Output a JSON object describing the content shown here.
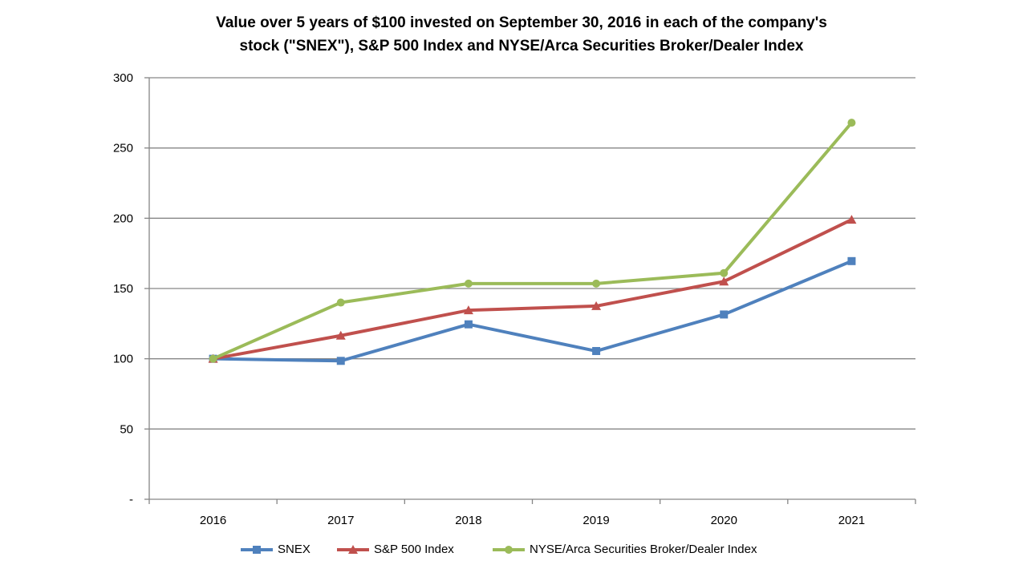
{
  "chart_data": {
    "type": "line",
    "title_lines": [
      "Value over 5 years of $100 invested on September 30, 2016 in each of the company's",
      "stock (\"SNEX\"), S&P 500 Index and NYSE/Arca Securities Broker/Dealer Index"
    ],
    "categories": [
      "2016",
      "2017",
      "2018",
      "2019",
      "2020",
      "2021"
    ],
    "ylim": [
      0,
      300
    ],
    "yticks": [
      0,
      50,
      100,
      150,
      200,
      250,
      300
    ],
    "ytick_labels": [
      "-",
      "50",
      "100",
      "150",
      "200",
      "250",
      "300"
    ],
    "grid": true,
    "legend_position": "bottom",
    "series": [
      {
        "name": "SNEX",
        "color": "#4F81BD",
        "marker": "square",
        "values": [
          100,
          98.5,
          124.5,
          105.5,
          131.5,
          169.5
        ]
      },
      {
        "name": "S&P 500 Index",
        "color": "#C0504D",
        "marker": "triangle",
        "values": [
          100,
          116.5,
          134.5,
          137.5,
          155,
          199
        ]
      },
      {
        "name": "NYSE/Arca Securities Broker/Dealer Index",
        "color": "#9BBB59",
        "marker": "circle",
        "values": [
          100,
          140,
          153.5,
          153.5,
          161,
          268
        ]
      }
    ]
  }
}
